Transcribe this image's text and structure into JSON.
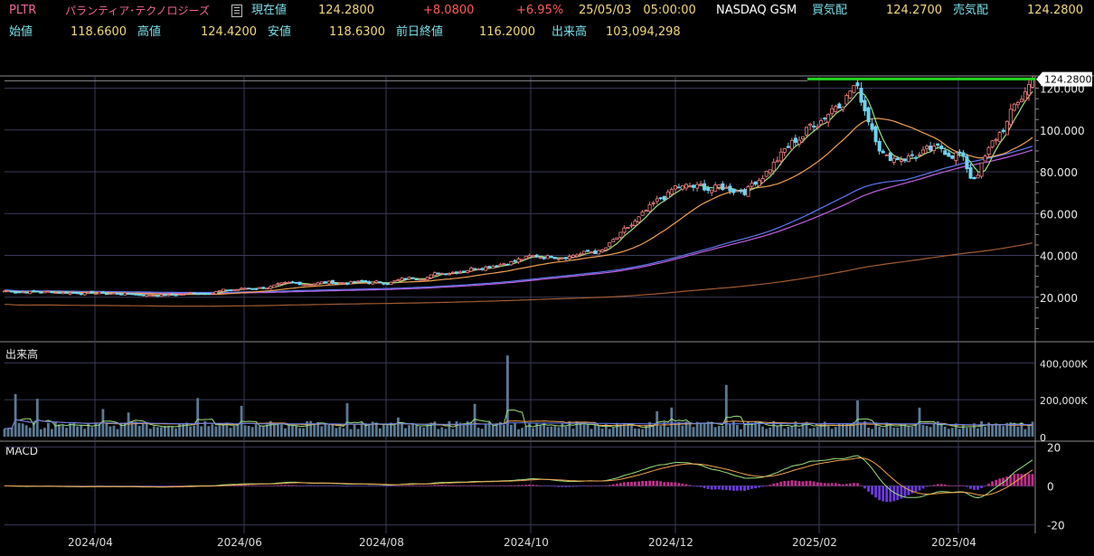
{
  "header": {
    "symbol": "PLTR",
    "company": "パランティア･テクノロジーズ",
    "last_label": "現在値",
    "last_value": "124.2800",
    "change": "+8.0800",
    "change_pct": "+6.95%",
    "datetime": "25/05/03　05:00:00",
    "exchange": "NASDAQ GSM",
    "bid_label": "買気配",
    "bid_value": "124.2700",
    "ask_label": "売気配",
    "ask_value": "124.2800",
    "open_label": "始値",
    "open_value": "118.6600",
    "high_label": "高値",
    "high_value": "124.4200",
    "low_label": "安値",
    "low_value": "118.6300",
    "prev_label": "前日終値",
    "prev_value": "116.2000",
    "vol_label": "出来高",
    "vol_value": "103,094,298"
  },
  "colors": {
    "up": "#f08080",
    "down": "#6fd3f0",
    "volume": "#5b7a94",
    "ma_short": "#9be07a",
    "ma_mid": "#f0a050",
    "ma_long1": "#5e78f0",
    "ma_long2": "#c060e0",
    "ma_long3": "#a05a30",
    "resistance": "#22d622",
    "grid": "#3a3a5a",
    "macd_pos": "#c0308a",
    "macd_neg": "#6a3ae0"
  },
  "price_axis": {
    "ticks": [
      "120.000",
      "100.000",
      "80.000",
      "60.000",
      "40.000",
      "20.000"
    ],
    "values": [
      120,
      100,
      80,
      60,
      40,
      20
    ],
    "min": 0,
    "max": 125
  },
  "price_tag": "124.2800",
  "volume_panel": {
    "label": "出来高",
    "ticks": [
      "400,000K",
      "200,000K",
      "0"
    ],
    "values": [
      400,
      200,
      0
    ],
    "max": 480
  },
  "macd_panel": {
    "label": "MACD",
    "ticks": [
      "20",
      "0",
      "-20"
    ],
    "values": [
      20,
      0,
      -20
    ],
    "min": -22,
    "max": 22
  },
  "x_axis": {
    "labels": [
      "2024/04",
      "2024/06",
      "2024/08",
      "2024/10",
      "2024/12",
      "2025/02",
      "2025/04"
    ]
  },
  "chart_data": {
    "type": "candlestick",
    "x_start": "2024/03",
    "x_end": "2025/05/02",
    "close_anchors": [
      [
        "2024/03",
        23
      ],
      [
        "2024/04",
        22
      ],
      [
        "2024/05",
        21
      ],
      [
        "2024/06",
        24
      ],
      [
        "2024/07",
        27
      ],
      [
        "2024/08",
        27
      ],
      [
        "2024/09",
        33
      ],
      [
        "2024/10",
        39
      ],
      [
        "2024/11",
        42
      ],
      [
        "2024/12",
        72
      ],
      [
        "2025/01",
        72
      ],
      [
        "2025/02/18",
        122
      ],
      [
        "2025/03",
        87
      ],
      [
        "2025/04/07",
        76
      ],
      [
        "2025/04",
        90
      ],
      [
        "2025/05/02",
        124.28
      ]
    ],
    "resistance_level": 124.42,
    "last_close": 124.28
  }
}
